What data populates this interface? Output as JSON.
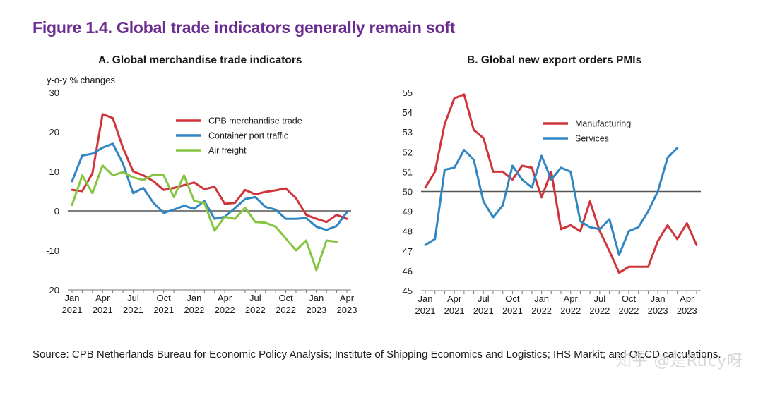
{
  "figure_title": "Figure 1.4. Global trade indicators generally remain soft",
  "source_text": "Source: CPB Netherlands Bureau for Economic Policy Analysis; Institute of Shipping Economics and Logistics; IHS Markit; and OECD calculations.",
  "watermark": "知乎 @是Rucy呀",
  "colors": {
    "title": "#6b2c8f",
    "red": "#d0343b",
    "blue": "#2f86c3",
    "green": "#86c541",
    "zero_line": "#555555"
  },
  "chart_data": [
    {
      "type": "line",
      "title": "A. Global merchandise trade indicators",
      "ylabel": "y-o-y % changes",
      "ylim": [
        -20,
        30
      ],
      "yticks": [
        30,
        20,
        10,
        0,
        -10,
        -20
      ],
      "reference_line": 0,
      "x": [
        "2021-01",
        "2021-02",
        "2021-03",
        "2021-04",
        "2021-05",
        "2021-06",
        "2021-07",
        "2021-08",
        "2021-09",
        "2021-10",
        "2021-11",
        "2021-12",
        "2022-01",
        "2022-02",
        "2022-03",
        "2022-04",
        "2022-05",
        "2022-06",
        "2022-07",
        "2022-08",
        "2022-09",
        "2022-10",
        "2022-11",
        "2022-12",
        "2023-01",
        "2023-02",
        "2023-03",
        "2023-04"
      ],
      "xticks": [
        {
          "i": 0,
          "line1": "Jan",
          "line2": "2021"
        },
        {
          "i": 3,
          "line1": "Apr",
          "line2": "2021"
        },
        {
          "i": 6,
          "line1": "Jul",
          "line2": "2021"
        },
        {
          "i": 9,
          "line1": "Oct",
          "line2": "2021"
        },
        {
          "i": 12,
          "line1": "Jan",
          "line2": "2022"
        },
        {
          "i": 15,
          "line1": "Apr",
          "line2": "2022"
        },
        {
          "i": 18,
          "line1": "Jul",
          "line2": "2022"
        },
        {
          "i": 21,
          "line1": "Oct",
          "line2": "2022"
        },
        {
          "i": 24,
          "line1": "Jan",
          "line2": "2023"
        },
        {
          "i": 27,
          "line1": "Apr",
          "line2": "2023"
        }
      ],
      "legend_placement": "top-right",
      "series": [
        {
          "name": "CPB merchandise trade",
          "color": "#d0343b",
          "values": [
            5.3,
            5.0,
            9.5,
            24.5,
            23.5,
            16.0,
            10.0,
            9.0,
            7.5,
            5.3,
            5.8,
            6.5,
            7.2,
            5.5,
            6.1,
            1.8,
            2.0,
            5.3,
            4.2,
            4.8,
            5.2,
            5.7,
            3.2,
            -1.0,
            -2.0,
            -2.8,
            -1.0,
            -2.0
          ]
        },
        {
          "name": "Container port traffic",
          "color": "#2f86c3",
          "values": [
            7.5,
            14.0,
            14.5,
            16.0,
            17.0,
            12.0,
            4.5,
            5.8,
            2.0,
            -0.5,
            0.3,
            1.3,
            0.5,
            2.5,
            -2.0,
            -1.5,
            0.7,
            3.0,
            3.5,
            1.0,
            0.3,
            -2.0,
            -2.0,
            -1.8,
            -4.0,
            -4.8,
            -3.8,
            -0.3
          ]
        },
        {
          "name": "Air freight",
          "color": "#86c541",
          "values": [
            1.5,
            9.0,
            4.5,
            11.5,
            9.0,
            9.8,
            8.5,
            7.8,
            9.2,
            9.0,
            3.5,
            9.0,
            2.5,
            2.0,
            -5.0,
            -1.5,
            -2.0,
            0.8,
            -2.8,
            -3.0,
            -4.0,
            -7.0,
            -10.0,
            -7.5,
            -15.0,
            -7.5,
            -7.8,
            null
          ]
        }
      ]
    },
    {
      "type": "line",
      "title": "B. Global new export orders PMIs",
      "ylabel": "",
      "ylim": [
        45,
        55
      ],
      "yticks": [
        55,
        54,
        53,
        52,
        51,
        50,
        49,
        48,
        47,
        46,
        45
      ],
      "reference_line": 50,
      "x": [
        "2021-01",
        "2021-02",
        "2021-03",
        "2021-04",
        "2021-05",
        "2021-06",
        "2021-07",
        "2021-08",
        "2021-09",
        "2021-10",
        "2021-11",
        "2021-12",
        "2022-01",
        "2022-02",
        "2022-03",
        "2022-04",
        "2022-05",
        "2022-06",
        "2022-07",
        "2022-08",
        "2022-09",
        "2022-10",
        "2022-11",
        "2022-12",
        "2023-01",
        "2023-02",
        "2023-03",
        "2023-04",
        "2023-05"
      ],
      "xticks": [
        {
          "i": 0,
          "line1": "Jan",
          "line2": "2021"
        },
        {
          "i": 3,
          "line1": "Apr",
          "line2": "2021"
        },
        {
          "i": 6,
          "line1": "Jul",
          "line2": "2021"
        },
        {
          "i": 9,
          "line1": "Oct",
          "line2": "2021"
        },
        {
          "i": 12,
          "line1": "Jan",
          "line2": "2022"
        },
        {
          "i": 15,
          "line1": "Apr",
          "line2": "2022"
        },
        {
          "i": 18,
          "line1": "Jul",
          "line2": "2022"
        },
        {
          "i": 21,
          "line1": "Oct",
          "line2": "2022"
        },
        {
          "i": 24,
          "line1": "Jan",
          "line2": "2023"
        },
        {
          "i": 27,
          "line1": "Apr",
          "line2": "2023"
        }
      ],
      "legend_placement": "top-right",
      "series": [
        {
          "name": "Manufacturing",
          "color": "#d0343b",
          "values": [
            50.2,
            51.0,
            53.4,
            54.7,
            54.9,
            53.1,
            52.7,
            51.0,
            51.0,
            50.6,
            51.3,
            51.2,
            49.7,
            51.0,
            48.1,
            48.3,
            48.0,
            49.5,
            48.0,
            47.0,
            45.9,
            46.2,
            46.2,
            46.2,
            47.5,
            48.3,
            47.6,
            48.4,
            47.3
          ]
        },
        {
          "name": "Services",
          "color": "#2f86c3",
          "values": [
            47.3,
            47.6,
            51.1,
            51.2,
            52.1,
            51.6,
            49.5,
            48.7,
            49.3,
            51.3,
            50.6,
            50.2,
            51.8,
            50.6,
            51.2,
            51.0,
            48.5,
            48.2,
            48.1,
            48.6,
            46.8,
            48.0,
            48.2,
            49.0,
            50.0,
            51.7,
            52.2,
            null,
            null
          ]
        }
      ]
    }
  ]
}
